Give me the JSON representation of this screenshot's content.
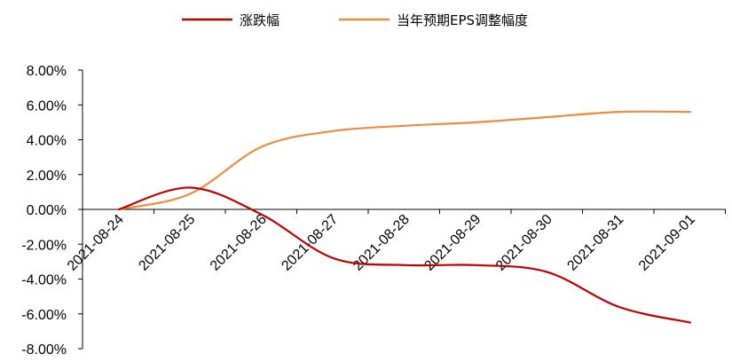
{
  "chart_data": {
    "type": "line",
    "title": "",
    "xlabel": "",
    "ylabel": "",
    "x": [
      "2021-08-24",
      "2021-08-25",
      "2021-08-26",
      "2021-08-27",
      "2021-08-28",
      "2021-08-29",
      "2021-08-30",
      "2021-08-31",
      "2021-09-01"
    ],
    "ylim": [
      -0.08,
      0.08
    ],
    "yticks": [
      0.08,
      0.06,
      0.04,
      0.02,
      0.0,
      -0.02,
      -0.04,
      -0.06,
      -0.08
    ],
    "ytick_labels": [
      "8.00%",
      "6.00%",
      "4.00%",
      "2.00%",
      "0.00%",
      "-2.00%",
      "-4.00%",
      "-6.00%",
      "-8.00%"
    ],
    "series": [
      {
        "name": "涨跌幅",
        "color": "#c00000",
        "values": [
          0.0,
          0.0125,
          -0.003,
          -0.028,
          -0.032,
          -0.032,
          -0.036,
          -0.056,
          -0.065
        ]
      },
      {
        "name": "当年预期EPS调整幅度",
        "color": "#f08a3c",
        "values": [
          0.0,
          0.009,
          0.036,
          0.045,
          0.048,
          0.05,
          0.053,
          0.056,
          0.056
        ]
      }
    ],
    "legend_position": "top-center",
    "grid": false
  }
}
